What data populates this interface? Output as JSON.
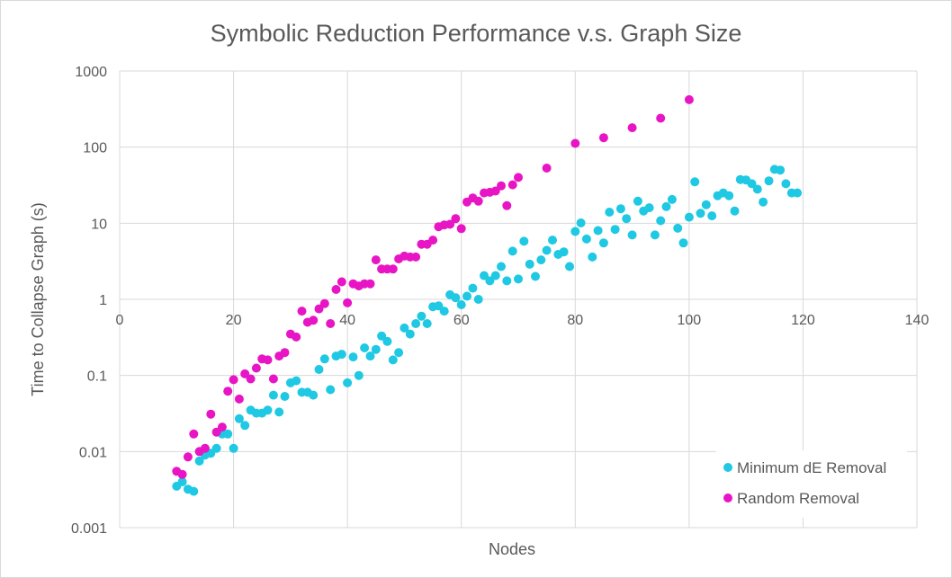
{
  "chart_data": {
    "type": "scatter",
    "title": "Symbolic Reduction Performance v.s. Graph Size",
    "xlabel": "Nodes",
    "ylabel": "Time to Collapse Graph (s)",
    "xlim": [
      0,
      140
    ],
    "ylim": [
      0.001,
      1000
    ],
    "yscale": "log",
    "grid": true,
    "legend_position": "bottom-right",
    "x_ticks": [
      "0",
      "20",
      "40",
      "60",
      "80",
      "100",
      "120",
      "140"
    ],
    "y_ticks": [
      "0.001",
      "0.01",
      "0.1",
      "1",
      "10",
      "100",
      "1000"
    ],
    "series": [
      {
        "name": "Minimum dE Removal",
        "color": "#1fc8e3",
        "x": [
          10,
          11,
          12,
          13,
          14,
          15,
          16,
          17,
          18,
          19,
          20,
          21,
          22,
          23,
          24,
          25,
          26,
          27,
          28,
          29,
          30,
          31,
          32,
          33,
          34,
          35,
          36,
          37,
          38,
          39,
          40,
          41,
          42,
          43,
          44,
          45,
          46,
          47,
          48,
          49,
          50,
          51,
          52,
          53,
          54,
          55,
          56,
          57,
          58,
          59,
          60,
          61,
          62,
          63,
          64,
          65,
          66,
          67,
          68,
          69,
          70,
          71,
          72,
          73,
          74,
          75,
          76,
          77,
          78,
          79,
          80,
          81,
          82,
          83,
          84,
          85,
          86,
          87,
          88,
          89,
          90,
          91,
          92,
          93,
          94,
          95,
          96,
          97,
          98,
          99,
          100,
          101,
          102,
          103,
          104,
          105,
          106,
          107,
          108,
          109,
          110,
          111,
          112,
          113,
          114,
          115,
          116,
          117,
          118,
          119
        ],
        "y": [
          0.0035,
          0.004,
          0.0032,
          0.003,
          0.0075,
          0.009,
          0.0095,
          0.011,
          0.017,
          0.017,
          0.011,
          0.027,
          0.022,
          0.035,
          0.032,
          0.032,
          0.035,
          0.055,
          0.033,
          0.053,
          0.08,
          0.085,
          0.06,
          0.06,
          0.055,
          0.12,
          0.165,
          0.065,
          0.18,
          0.19,
          0.08,
          0.175,
          0.1,
          0.23,
          0.18,
          0.22,
          0.33,
          0.28,
          0.16,
          0.2,
          0.42,
          0.35,
          0.48,
          0.6,
          0.48,
          0.8,
          0.82,
          0.7,
          1.15,
          1.05,
          0.85,
          1.1,
          1.4,
          1.0,
          2.05,
          1.75,
          2.05,
          2.7,
          1.75,
          4.3,
          1.85,
          5.8,
          2.9,
          2.0,
          3.3,
          4.4,
          6.0,
          3.9,
          4.2,
          2.7,
          7.8,
          10.1,
          6.2,
          3.6,
          8.0,
          5.5,
          14.0,
          8.3,
          15.5,
          11.5,
          7.0,
          19.5,
          14.5,
          16.0,
          7.0,
          10.8,
          16.5,
          20.5,
          8.6,
          5.5,
          12.0,
          35.0,
          13.5,
          17.5,
          12.5,
          23.0,
          25.0,
          23.0,
          14.5,
          37.5,
          37.0,
          33.0,
          28.0,
          19.0,
          36.0,
          51.0,
          50.0,
          33.0,
          25.0,
          25.0
        ]
      },
      {
        "name": "Random Removal",
        "color": "#e815c4",
        "x": [
          10,
          11,
          12,
          13,
          14,
          15,
          16,
          17,
          18,
          19,
          20,
          21,
          22,
          23,
          24,
          25,
          26,
          27,
          28,
          29,
          30,
          31,
          32,
          33,
          34,
          35,
          36,
          37,
          38,
          39,
          40,
          41,
          42,
          43,
          44,
          45,
          46,
          47,
          48,
          49,
          50,
          51,
          52,
          53,
          54,
          55,
          56,
          57,
          58,
          59,
          60,
          61,
          62,
          63,
          64,
          65,
          66,
          67,
          68,
          69,
          70,
          75,
          80,
          85,
          90,
          95,
          100
        ],
        "y": [
          0.0055,
          0.005,
          0.0085,
          0.017,
          0.01,
          0.011,
          0.031,
          0.018,
          0.021,
          0.062,
          0.088,
          0.049,
          0.105,
          0.09,
          0.125,
          0.165,
          0.16,
          0.09,
          0.18,
          0.2,
          0.35,
          0.32,
          0.7,
          0.5,
          0.53,
          0.75,
          0.88,
          0.48,
          1.35,
          1.7,
          0.9,
          1.6,
          1.5,
          1.6,
          1.6,
          3.3,
          2.5,
          2.5,
          2.5,
          3.4,
          3.7,
          3.6,
          3.6,
          5.3,
          5.3,
          6.0,
          9.0,
          9.5,
          9.7,
          11.5,
          8.5,
          19.0,
          21.5,
          19.5,
          25.0,
          25.5,
          26.5,
          31.0,
          17.0,
          32.0,
          40.0,
          53.0,
          112.0,
          133.0,
          180.0,
          240.0,
          420.0
        ]
      }
    ]
  }
}
